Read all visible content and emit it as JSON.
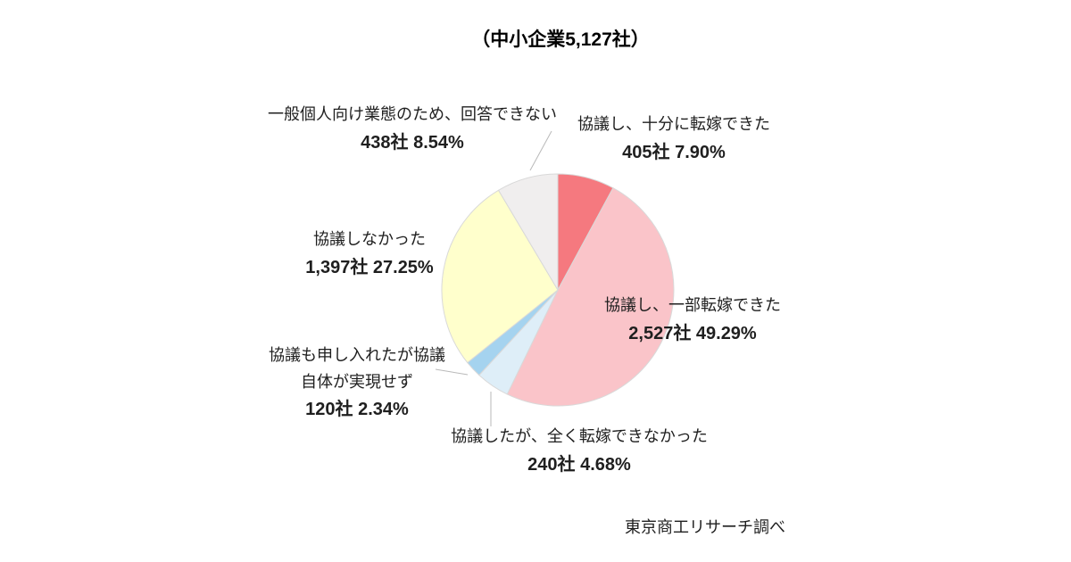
{
  "title": "（中小企業5,127社）",
  "source_note": "東京商工リサーチ調べ",
  "chart_data": {
    "type": "pie",
    "title": "（中小企業5,127社）",
    "total_companies": 5127,
    "total_label": "中小企業5,127社",
    "start_angle_deg": 0,
    "direction": "clockwise",
    "legend_position": "none",
    "stroke_color": "#d9d9d9",
    "leader_line_color": "#b9b9b9",
    "slices": [
      {
        "label": "協議し、十分に転嫁できた",
        "companies": 405,
        "percent": 7.9,
        "value_label": "405社 7.90%",
        "color": "#f5797f"
      },
      {
        "label": "協議し、一部転嫁できた",
        "companies": 2527,
        "percent": 49.29,
        "value_label": "2,527社 49.29%",
        "color": "#fac4c9"
      },
      {
        "label": "協議したが、全く転嫁できなかった",
        "companies": 240,
        "percent": 4.68,
        "value_label": "240社 4.68%",
        "color": "#deeef8"
      },
      {
        "label": "協議も申し入れたが協議自体が実現せず",
        "label_line1": "協議も申し入れたが協議",
        "label_line2": "自体が実現せず",
        "companies": 120,
        "percent": 2.34,
        "value_label": "120社 2.34%",
        "color": "#a5d3ef"
      },
      {
        "label": "協議しなかった",
        "companies": 1397,
        "percent": 27.25,
        "value_label": "1,397社 27.25%",
        "color": "#ffffcc"
      },
      {
        "label": "一般個人向け業態のため、回答できない",
        "companies": 438,
        "percent": 8.54,
        "value_label": "438社 8.54%",
        "color": "#f0eeee"
      }
    ]
  }
}
